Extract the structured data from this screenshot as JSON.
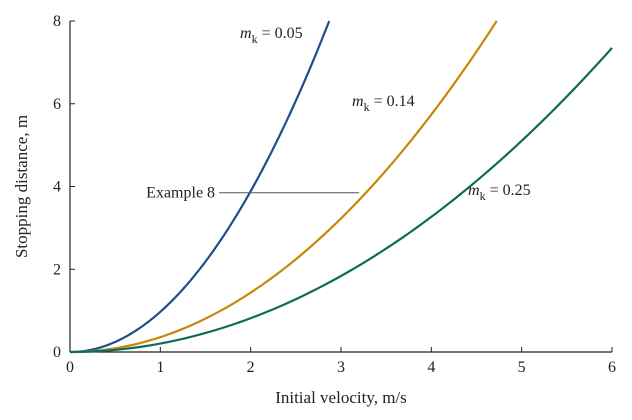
{
  "chart_data": {
    "type": "line",
    "title": "",
    "xlabel": "Initial velocity, m/s",
    "ylabel": "Stopping distance, m",
    "xlim": [
      0,
      6
    ],
    "ylim": [
      0,
      8
    ],
    "x_ticks": [
      0,
      1,
      2,
      3,
      4,
      5,
      6
    ],
    "y_ticks": [
      0,
      2,
      4,
      6,
      8
    ],
    "grid": false,
    "series": [
      {
        "name": "m_k = 0.05",
        "label_symbol": "m",
        "label_subscript": "k",
        "label_value": " = 0.05",
        "color": "#1f4e8c",
        "x": [
          0,
          0.5,
          1.0,
          1.5,
          2.0,
          2.5,
          2.93
        ],
        "y": [
          0,
          0.255,
          1.02,
          2.29,
          4.08,
          6.37,
          8.0
        ]
      },
      {
        "name": "m_k = 0.14",
        "label_symbol": "m",
        "label_subscript": "k",
        "label_value": " = 0.14",
        "color": "#c8860a",
        "x": [
          0,
          1,
          2,
          3,
          4,
          4.75
        ],
        "y": [
          0,
          0.364,
          1.46,
          3.28,
          5.83,
          8.0
        ]
      },
      {
        "name": "m_k = 0.25",
        "label_symbol": "m",
        "label_subscript": "k",
        "label_value": " = 0.25",
        "color": "#0e6b5a",
        "x": [
          0,
          1,
          2,
          3,
          4,
          5,
          6
        ],
        "y": [
          0,
          0.204,
          0.816,
          1.84,
          3.27,
          5.1,
          7.35
        ]
      }
    ],
    "annotations": [
      {
        "text": "Example 8",
        "y": 3.85,
        "x_start": 1.65,
        "x_end": 3.2
      }
    ]
  }
}
